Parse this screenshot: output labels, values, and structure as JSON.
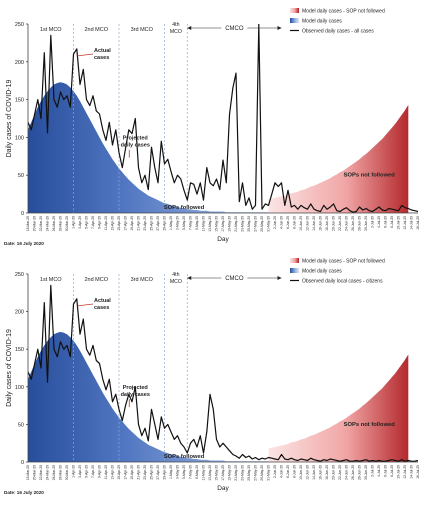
{
  "chart_data": [
    {
      "type": "line",
      "ylabel": "Daily cases of COVID-19",
      "xlabel": "Day",
      "date_note": "Date: 16 July 2020",
      "ylim": [
        0,
        250
      ],
      "yticks": [
        0,
        50,
        100,
        150,
        200,
        250
      ],
      "grid": false,
      "legend_position": "top-right",
      "x_tick_labels": [
        "18-Mar-20",
        "20-Mar-20",
        "22-Mar-20",
        "24-Mar-20",
        "26-Mar-20",
        "28-Mar-20",
        "30-Mar-20",
        "1-Apr-20",
        "3-Apr-20",
        "5-Apr-20",
        "7-Apr-20",
        "9-Apr-20",
        "11-Apr-20",
        "13-Apr-20",
        "15-Apr-20",
        "17-Apr-20",
        "19-Apr-20",
        "21-Apr-20",
        "23-Apr-20",
        "25-Apr-20",
        "27-Apr-20",
        "29-Apr-20",
        "1-May-20",
        "3-May-20",
        "5-May-20",
        "7-May-20",
        "9-May-20",
        "11-May-20",
        "13-May-20",
        "15-May-20",
        "17-May-20",
        "19-May-20",
        "21-May-20",
        "23-May-20",
        "25-May-20",
        "27-May-20",
        "29-May-20",
        "31-May-20",
        "2-Jun-20",
        "4-Jun-20",
        "6-Jun-20",
        "8-Jun-20",
        "10-Jun-20",
        "12-Jun-20",
        "14-Jun-20",
        "16-Jun-20",
        "18-Jun-20",
        "20-Jun-20",
        "22-Jun-20",
        "24-Jun-20",
        "26-Jun-20",
        "28-Jun-20",
        "30-Jun-20",
        "2-Jul-20",
        "4-Jul-20",
        "6-Jul-20",
        "8-Jul-20",
        "10-Jul-20",
        "12-Jul-20",
        "14-Jul-20",
        "16-Jul-20"
      ],
      "phases": [
        "1st MCO",
        "2nd MCO",
        "3rd MCO",
        "4th MCO",
        "CMCO"
      ],
      "annotations": [
        "Actual cases",
        "Projected daily cases",
        "SOPs followed",
        "SOPs not followed"
      ],
      "legend": [
        "Model daily cases - SOP not followed",
        "Model daily cases",
        "Observed daily cases - all cases"
      ],
      "series": [
        {
          "name": "Model daily cases",
          "values": [
            110,
            120,
            130,
            140,
            148,
            155,
            161,
            166,
            170,
            172,
            173,
            172,
            170,
            166,
            161,
            155,
            148,
            140,
            132,
            124,
            116,
            108,
            100,
            92,
            85,
            78,
            71,
            65,
            59,
            54,
            49,
            44,
            40,
            36,
            32,
            29,
            26,
            23,
            21,
            19,
            17,
            15,
            13,
            12,
            10,
            9,
            8,
            7,
            6,
            5,
            5,
            4,
            4,
            3,
            3,
            3,
            2,
            2,
            2,
            2,
            2,
            1,
            1,
            1,
            1,
            1,
            1,
            1,
            1,
            1,
            1,
            1,
            1,
            1,
            1,
            1,
            1,
            1,
            1,
            1,
            1,
            1,
            1,
            1,
            1,
            1,
            1,
            1,
            1,
            1,
            1,
            1,
            1,
            1,
            1,
            1,
            1,
            1,
            1,
            1,
            1,
            1,
            1,
            1,
            1,
            1,
            1,
            1,
            1,
            1,
            1,
            1,
            1,
            1,
            1,
            1,
            1,
            1,
            1,
            1,
            1
          ]
        },
        {
          "name": "Model daily cases - SOP not followed",
          "start_index": 74,
          "values": [
            18,
            19,
            20,
            21,
            22,
            23,
            24,
            26,
            27,
            28,
            30,
            31,
            33,
            35,
            36,
            38,
            40,
            42,
            44,
            46,
            49,
            51,
            54,
            56,
            59,
            62,
            65,
            68,
            71,
            75,
            78,
            82,
            86,
            90,
            94,
            98,
            103,
            108,
            113,
            118,
            124,
            130,
            136,
            143
          ]
        },
        {
          "name": "Observed daily cases - all cases",
          "values": [
            120,
            110,
            130,
            150,
            125,
            212,
            106,
            235,
            150,
            140,
            160,
            150,
            155,
            140,
            210,
            217,
            170,
            190,
            150,
            142,
            155,
            135,
            131,
            110,
            96,
            120,
            90,
            110,
            80,
            60,
            85,
            110,
            105,
            125,
            60,
            40,
            50,
            31,
            87,
            60,
            40,
            95,
            65,
            71,
            55,
            40,
            50,
            45,
            30,
            17,
            40,
            38,
            25,
            40,
            17,
            60,
            40,
            36,
            45,
            31,
            70,
            40,
            130,
            165,
            185,
            15,
            40,
            10,
            20,
            5,
            10,
            260,
            5,
            12,
            10,
            25,
            40,
            35,
            40,
            10,
            30,
            8,
            10,
            5,
            10,
            7,
            5,
            12,
            5,
            3,
            2,
            10,
            5,
            8,
            12,
            3,
            2,
            5,
            7,
            3,
            1,
            2,
            8,
            4,
            6,
            3,
            2,
            5,
            8,
            4,
            3,
            6,
            5,
            4,
            3,
            10,
            7,
            6,
            4,
            3,
            2
          ]
        }
      ]
    },
    {
      "type": "line",
      "ylabel": "Daily cases of COVID-19",
      "xlabel": "Day",
      "date_note": "Date: 16 July 2020",
      "ylim": [
        0,
        250
      ],
      "yticks": [
        0,
        50,
        100,
        150,
        200,
        250
      ],
      "grid": false,
      "legend_position": "top-right",
      "x_tick_labels": [
        "18-Mar-20",
        "20-Mar-20",
        "22-Mar-20",
        "24-Mar-20",
        "26-Mar-20",
        "28-Mar-20",
        "30-Mar-20",
        "1-Apr-20",
        "3-Apr-20",
        "5-Apr-20",
        "7-Apr-20",
        "9-Apr-20",
        "11-Apr-20",
        "13-Apr-20",
        "15-Apr-20",
        "17-Apr-20",
        "19-Apr-20",
        "21-Apr-20",
        "23-Apr-20",
        "25-Apr-20",
        "27-Apr-20",
        "29-Apr-20",
        "1-May-20",
        "3-May-20",
        "5-May-20",
        "7-May-20",
        "9-May-20",
        "11-May-20",
        "13-May-20",
        "15-May-20",
        "17-May-20",
        "19-May-20",
        "21-May-20",
        "23-May-20",
        "25-May-20",
        "27-May-20",
        "29-May-20",
        "31-May-20",
        "2-Jun-20",
        "4-Jun-20",
        "6-Jun-20",
        "8-Jun-20",
        "10-Jun-20",
        "12-Jun-20",
        "14-Jun-20",
        "16-Jun-20",
        "18-Jun-20",
        "20-Jun-20",
        "22-Jun-20",
        "24-Jun-20",
        "26-Jun-20",
        "28-Jun-20",
        "30-Jun-20",
        "2-Jul-20",
        "4-Jul-20",
        "6-Jul-20",
        "8-Jul-20",
        "10-Jul-20",
        "12-Jul-20",
        "14-Jul-20",
        "16-Jul-20"
      ],
      "phases": [
        "1st MCO",
        "2nd MCO",
        "3rd MCO",
        "4th MCO",
        "CMCO"
      ],
      "annotations": [
        "Actual cases",
        "Projected daily cases",
        "SOPs followed",
        "SOPs not followed"
      ],
      "legend": [
        "Model daily cases - SOP not followed",
        "Model daily cases",
        "Observed daily local cases - citizens"
      ],
      "series": [
        {
          "name": "Model daily cases",
          "values": [
            110,
            120,
            130,
            140,
            148,
            155,
            161,
            166,
            170,
            172,
            173,
            172,
            170,
            166,
            161,
            155,
            148,
            140,
            132,
            124,
            116,
            108,
            100,
            92,
            85,
            78,
            71,
            65,
            59,
            54,
            49,
            44,
            40,
            36,
            32,
            29,
            26,
            23,
            21,
            19,
            17,
            15,
            13,
            12,
            10,
            9,
            8,
            7,
            6,
            5,
            5,
            4,
            4,
            3,
            3,
            3,
            2,
            2,
            2,
            2,
            2,
            1,
            1,
            1,
            1,
            1,
            1,
            1,
            1,
            1,
            1,
            1,
            1,
            1,
            1,
            1,
            1,
            1,
            1,
            1,
            1,
            1,
            1,
            1,
            1,
            1,
            1,
            1,
            1,
            1,
            1,
            1,
            1,
            1,
            1,
            1,
            1,
            1,
            1,
            1,
            1,
            1,
            1,
            1,
            1,
            1,
            1,
            1,
            1,
            1,
            1,
            1,
            1,
            1,
            1,
            1,
            1,
            1,
            1,
            1,
            1
          ]
        },
        {
          "name": "Model daily cases - SOP not followed",
          "start_index": 74,
          "values": [
            18,
            19,
            20,
            21,
            22,
            23,
            24,
            26,
            27,
            28,
            30,
            31,
            33,
            35,
            36,
            38,
            40,
            42,
            44,
            46,
            49,
            51,
            54,
            56,
            59,
            62,
            65,
            68,
            71,
            75,
            78,
            82,
            86,
            90,
            94,
            98,
            103,
            108,
            113,
            118,
            124,
            130,
            136,
            143
          ]
        },
        {
          "name": "Observed daily local cases - citizens",
          "values": [
            120,
            110,
            130,
            150,
            125,
            212,
            106,
            235,
            150,
            140,
            160,
            150,
            155,
            140,
            210,
            217,
            170,
            190,
            150,
            142,
            155,
            135,
            131,
            110,
            96,
            110,
            80,
            90,
            70,
            55,
            75,
            90,
            80,
            100,
            50,
            35,
            45,
            28,
            70,
            50,
            30,
            60,
            45,
            50,
            40,
            30,
            35,
            25,
            20,
            12,
            25,
            30,
            20,
            35,
            12,
            40,
            90,
            70,
            30,
            20,
            25,
            20,
            15,
            10,
            8,
            5,
            10,
            6,
            8,
            4,
            6,
            3,
            5,
            4,
            6,
            5,
            4,
            3,
            10,
            4,
            3,
            5,
            3,
            2,
            4,
            3,
            2,
            5,
            3,
            2,
            1,
            3,
            2,
            4,
            3,
            2,
            1,
            2,
            3,
            1,
            1,
            2,
            1,
            2,
            3,
            1,
            2,
            1,
            2,
            1,
            1,
            2,
            3,
            2,
            1,
            3,
            1,
            2,
            1,
            1,
            2
          ]
        }
      ]
    }
  ]
}
